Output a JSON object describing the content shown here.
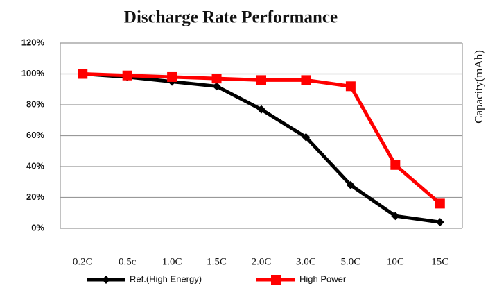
{
  "chart_data": {
    "type": "line",
    "title": "Discharge Rate Performance",
    "ylabel": "Capacity(mAh)",
    "categories": [
      "0.2C",
      "0.5c",
      "1.0C",
      "1.5C",
      "2.0C",
      "3.0C",
      "5.0C",
      "10C",
      "15C"
    ],
    "series": [
      {
        "name": "Ref.(High Energy)",
        "color": "#000000",
        "marker": "diamond",
        "values": [
          100,
          98,
          95,
          92,
          77,
          59,
          28,
          8,
          4
        ]
      },
      {
        "name": "High Power",
        "color": "#ff0000",
        "marker": "square",
        "values": [
          100,
          99,
          98,
          97,
          96,
          96,
          92,
          41,
          16
        ]
      }
    ],
    "ylim": [
      0,
      120
    ],
    "yticks": [
      {
        "value": 0,
        "label": "0%"
      },
      {
        "value": 20,
        "label": "20%"
      },
      {
        "value": 40,
        "label": "40%"
      },
      {
        "value": 60,
        "label": "60%"
      },
      {
        "value": 80,
        "label": "80%"
      },
      {
        "value": 100,
        "label": "100%"
      },
      {
        "value": 120,
        "label": "120%"
      }
    ],
    "grid": true,
    "legend": "bottom"
  }
}
